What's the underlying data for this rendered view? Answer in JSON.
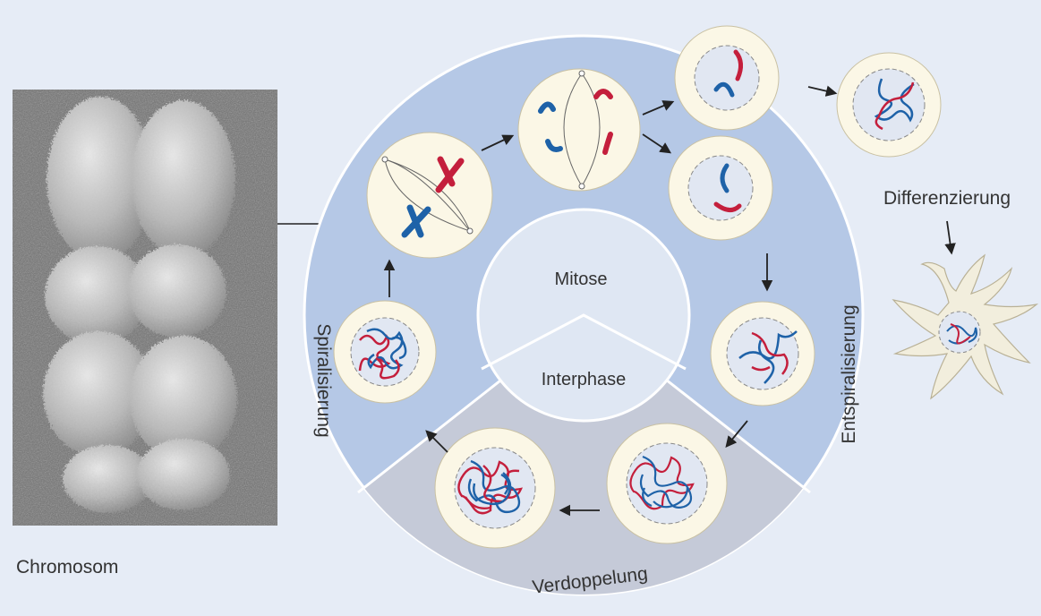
{
  "labels": {
    "chromosome": "Chromosom",
    "mitosis": "Mitose",
    "interphase": "Interphase",
    "spiralization": "Spiralisierung",
    "despiralization": "Entspiralisierung",
    "duplication": "Verdoppelung",
    "differentiation": "Differenzierung"
  },
  "colors": {
    "background": "#e6ecf6",
    "mitosis_ring": "#b5c8e6",
    "interphase_ring": "#c5cad8",
    "hub": "#dfe7f3",
    "cell_outer": "#fbf7e6",
    "cell_inner": "#e1e7f2",
    "chromatid_red": "#c41f3c",
    "chromatid_blue": "#1e62a8",
    "neuron": "#f2eedd"
  },
  "icons": {
    "photo": "chromosome-micrograph",
    "cell": "cell-icon",
    "arrow": "arrow-icon",
    "neuron": "neuron-icon"
  }
}
